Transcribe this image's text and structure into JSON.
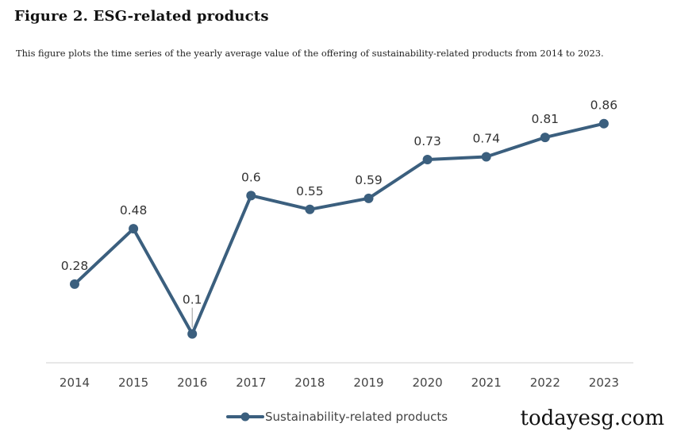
{
  "figure": {
    "title": "Figure 2.  ESG-related products",
    "caption": "This figure plots the time series of the yearly average value of the offering of sustainability-related products from 2014 to 2023."
  },
  "chart_data": {
    "type": "line",
    "title": "",
    "xlabel": "",
    "ylabel": "",
    "categories": [
      "2014",
      "2015",
      "2016",
      "2017",
      "2018",
      "2019",
      "2020",
      "2021",
      "2022",
      "2023"
    ],
    "series": [
      {
        "name": "Sustainability-related products",
        "values": [
          0.28,
          0.48,
          0.1,
          0.6,
          0.55,
          0.59,
          0.73,
          0.74,
          0.81,
          0.86
        ],
        "labels": [
          "0.28",
          "0.48",
          "0.1",
          "0.6",
          "0.55",
          "0.59",
          "0.73",
          "0.74",
          "0.81",
          "0.86"
        ]
      }
    ],
    "ylim": [
      0,
      1
    ],
    "grid": false,
    "legend_position": "bottom",
    "colors": {
      "line": "#3b5f7e",
      "axis": "#d9d9d9"
    }
  },
  "watermark": "todayesg.com"
}
